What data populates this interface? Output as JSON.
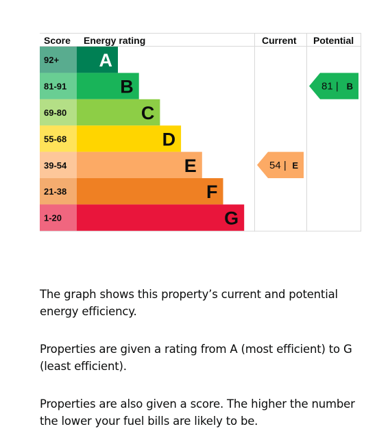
{
  "chart_data": {
    "type": "bar",
    "headers": {
      "score": "Score",
      "rating": "Energy rating",
      "current": "Current",
      "potential": "Potential"
    },
    "bands": [
      {
        "letter": "A",
        "range": "92+",
        "color": "#008054",
        "text_color": "#ffffff"
      },
      {
        "letter": "B",
        "range": "81-91",
        "color": "#19b459",
        "text_color": "#0b0c0c"
      },
      {
        "letter": "C",
        "range": "69-80",
        "color": "#8dce46",
        "text_color": "#0b0c0c"
      },
      {
        "letter": "D",
        "range": "55-68",
        "color": "#ffd500",
        "text_color": "#0b0c0c"
      },
      {
        "letter": "E",
        "range": "39-54",
        "color": "#fcaa65",
        "text_color": "#0b0c0c"
      },
      {
        "letter": "F",
        "range": "21-38",
        "color": "#ef8023",
        "text_color": "#0b0c0c"
      },
      {
        "letter": "G",
        "range": "1-20",
        "color": "#e9153b",
        "text_color": "#0b0c0c"
      }
    ],
    "current": {
      "score": 54,
      "band": "E",
      "label": "54 |",
      "color": "#fcaa65"
    },
    "potential": {
      "score": 81,
      "band": "B",
      "label": "81 |",
      "color": "#19b459"
    }
  },
  "description": [
    "The graph shows this property’s current and potential energy efficiency.",
    "Properties are given a rating from A (most efficient) to G (least efficient).",
    "Properties are also given a score. The higher the number the lower your fuel bills are likely to be."
  ]
}
